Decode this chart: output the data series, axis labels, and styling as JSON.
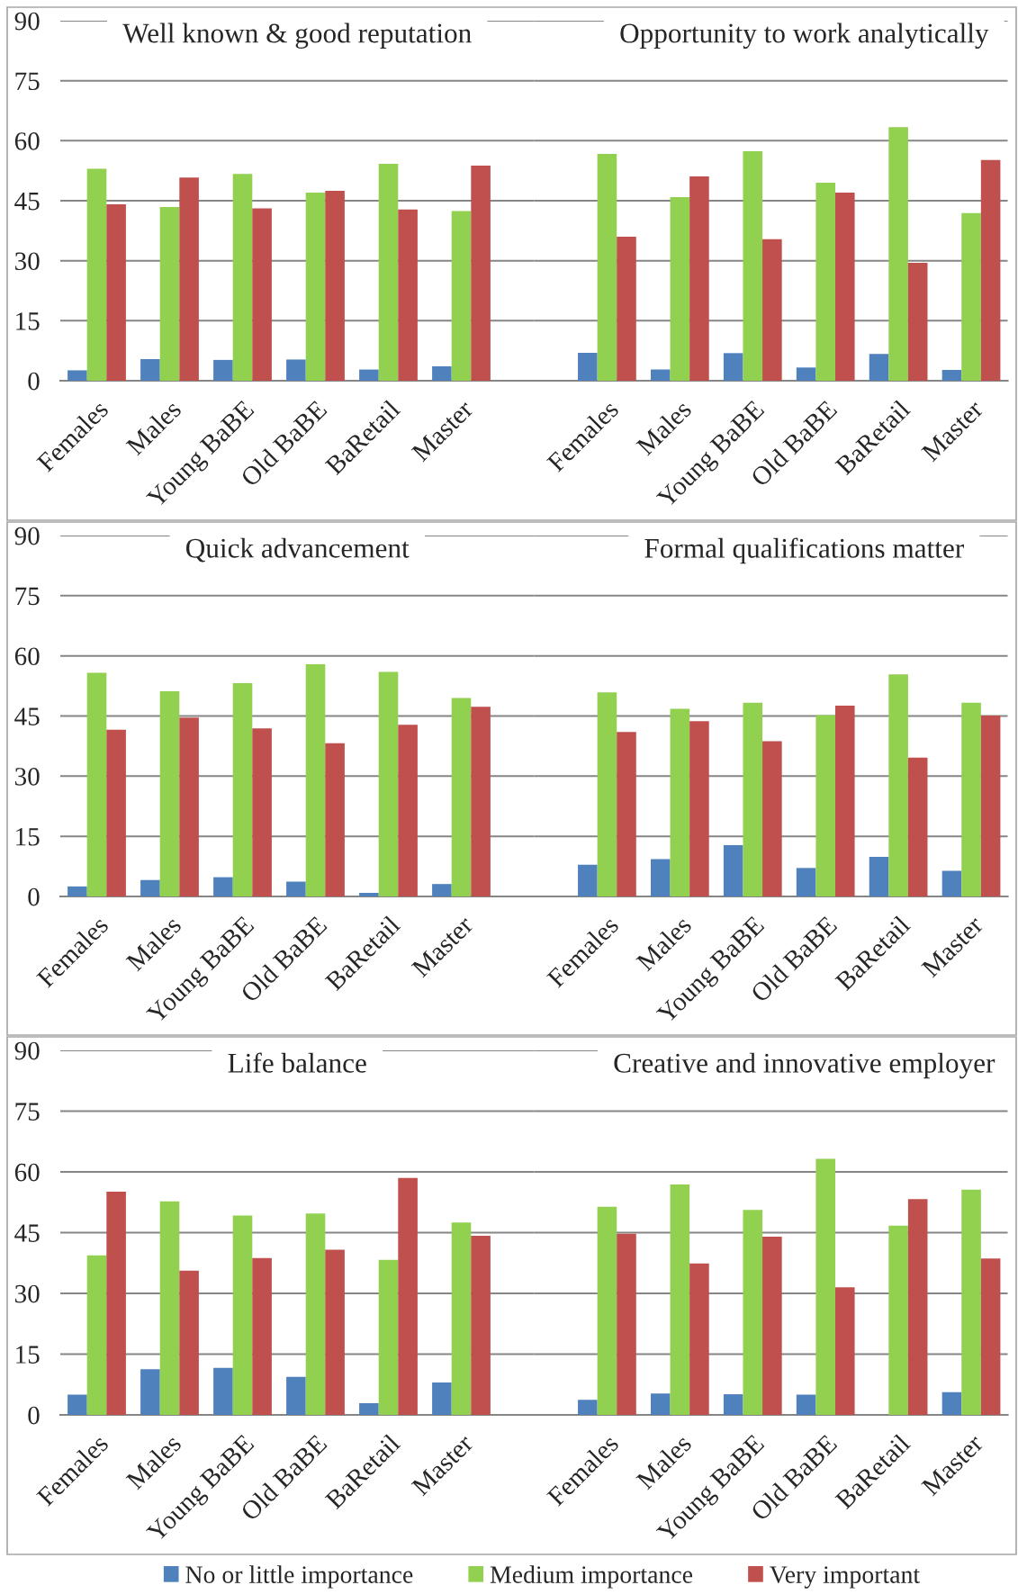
{
  "chart_data": [
    {
      "type": "bar",
      "title": "Well known & good reputation",
      "categories": [
        "Females",
        "Males",
        "Young BaBE",
        "Old BaBE",
        "BaRetail",
        "Master"
      ],
      "series": [
        {
          "name": "No or little importance",
          "color": "#4f81bd",
          "values": [
            2.6,
            5.4,
            5.2,
            5.3,
            2.8,
            3.6
          ]
        },
        {
          "name": "Medium importance",
          "color": "#92d050",
          "values": [
            53.0,
            43.4,
            51.7,
            47.0,
            54.2,
            42.4
          ]
        },
        {
          "name": "Very important",
          "color": "#c0504d",
          "values": [
            44.1,
            50.8,
            43.1,
            47.5,
            42.8,
            53.8
          ]
        }
      ],
      "ylim": [
        0,
        90
      ],
      "yticks": [
        0,
        15,
        30,
        45,
        60,
        75,
        90
      ],
      "grid": "y",
      "legend": "bottom"
    },
    {
      "type": "bar",
      "title": "Opportunity to work analytically",
      "categories": [
        "Females",
        "Males",
        "Young BaBE",
        "Old BaBE",
        "BaRetail",
        "Master"
      ],
      "series": [
        {
          "color": "#4f81bd",
          "values": [
            7.0,
            2.8,
            6.9,
            3.3,
            6.7,
            2.7
          ]
        },
        {
          "color": "#92d050",
          "values": [
            56.7,
            45.9,
            57.4,
            49.5,
            63.4,
            41.9
          ]
        },
        {
          "color": "#c0504d",
          "values": [
            36.0,
            51.1,
            35.4,
            47.0,
            29.5,
            55.2
          ]
        }
      ],
      "ylim": [
        0,
        90
      ],
      "yticks": [
        0,
        15,
        30,
        45,
        60,
        75,
        90
      ],
      "grid": "y",
      "tick_labels": "x"
    },
    {
      "type": "bar",
      "title": "Quick advancement",
      "categories": [
        "Females",
        "Males",
        "Young BaBE",
        "Old BaBE",
        "BaRetail",
        "Master"
      ],
      "series": [
        {
          "color": "#4f81bd",
          "values": [
            2.5,
            4.1,
            4.8,
            3.7,
            0.9,
            3.1
          ]
        },
        {
          "color": "#92d050",
          "values": [
            55.8,
            51.2,
            53.2,
            57.9,
            56.0,
            49.5
          ]
        },
        {
          "color": "#c0504d",
          "values": [
            41.6,
            44.6,
            41.9,
            38.2,
            42.8,
            47.3
          ]
        }
      ],
      "ylim": [
        0,
        90
      ],
      "yticks": [
        0,
        15,
        30,
        45,
        60,
        75,
        90
      ],
      "grid": "y"
    },
    {
      "type": "bar",
      "title": "Formal qualifications matter",
      "categories": [
        "Females",
        "Males",
        "Young BaBE",
        "Old BaBE",
        "BaRetail",
        "Master"
      ],
      "series": [
        {
          "color": "#4f81bd",
          "values": [
            7.9,
            9.3,
            12.8,
            7.1,
            9.9,
            6.4
          ]
        },
        {
          "color": "#92d050",
          "values": [
            50.9,
            46.8,
            48.3,
            45.2,
            55.4,
            48.3
          ]
        },
        {
          "color": "#c0504d",
          "values": [
            41.0,
            43.7,
            38.7,
            47.6,
            34.6,
            45.1
          ]
        }
      ],
      "ylim": [
        0,
        90
      ],
      "yticks": [
        0,
        15,
        30,
        45,
        60,
        75,
        90
      ],
      "grid": "y",
      "tick_labels": "x"
    },
    {
      "type": "bar",
      "title": "Life balance",
      "categories": [
        "Females",
        "Males",
        "Young BaBE",
        "Old BaBE",
        "BaRetail",
        "Master"
      ],
      "series": [
        {
          "color": "#4f81bd",
          "values": [
            5.0,
            11.3,
            11.6,
            9.4,
            2.9,
            8.0
          ]
        },
        {
          "color": "#92d050",
          "values": [
            39.4,
            52.7,
            49.2,
            49.7,
            38.3,
            47.5
          ]
        },
        {
          "color": "#c0504d",
          "values": [
            55.1,
            35.6,
            38.7,
            40.8,
            58.5,
            44.2
          ]
        }
      ],
      "ylim": [
        0,
        90
      ],
      "yticks": [
        0,
        15,
        30,
        45,
        60,
        75,
        90
      ],
      "grid": "y"
    },
    {
      "type": "bar",
      "title": "Creative and innovative employer",
      "categories": [
        "Females",
        "Males",
        "Young BaBE",
        "Old BaBE",
        "BaRetail",
        "Master"
      ],
      "series": [
        {
          "color": "#4f81bd",
          "values": [
            3.7,
            5.3,
            5.1,
            5.0,
            0,
            5.6
          ]
        },
        {
          "color": "#92d050",
          "values": [
            51.4,
            56.9,
            50.6,
            63.2,
            46.7,
            55.6
          ]
        },
        {
          "color": "#c0504d",
          "values": [
            44.7,
            37.4,
            44.0,
            31.5,
            53.3,
            38.6
          ]
        }
      ],
      "ylim": [
        0,
        90
      ],
      "yticks": [
        0,
        15,
        30,
        45,
        60,
        75,
        90
      ],
      "grid": "y",
      "tick_labels": "x"
    }
  ]
}
